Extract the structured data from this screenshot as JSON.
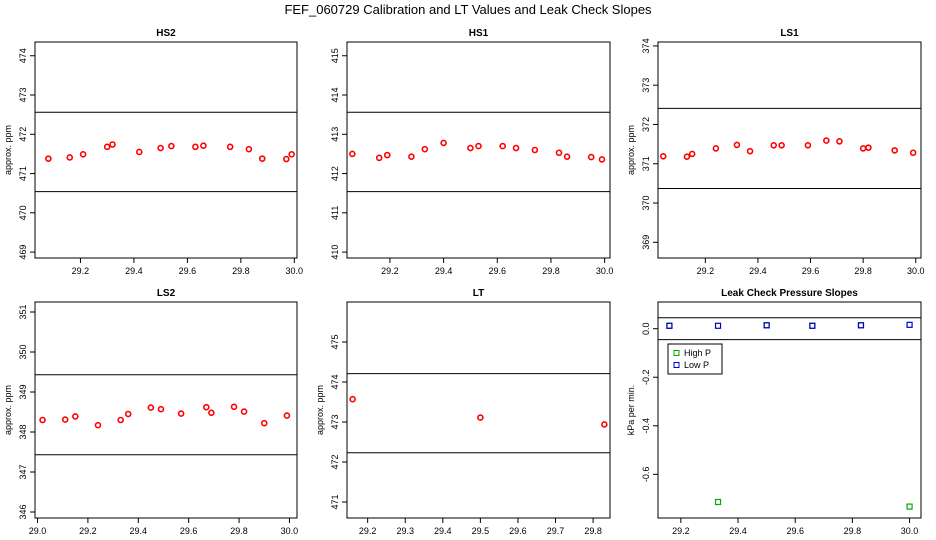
{
  "title": "FEF_060729  Calibration and LT Values and Leak Check Slopes",
  "colors": {
    "point": "#ff0000",
    "high_p": "#00aa00",
    "low_p": "#0000cc",
    "axis": "#000000"
  },
  "chart_data": [
    {
      "type": "scatter",
      "title": "HS2",
      "ylabel": "approx. ppm",
      "xlim": [
        29.03,
        30.01
      ],
      "ylim": [
        468.85,
        474.35
      ],
      "xticks": [
        29.2,
        29.4,
        29.6,
        29.8,
        30.0
      ],
      "xtick_labels": [
        "29.2",
        "29.4",
        "29.6",
        "29.8",
        "30.0"
      ],
      "yticks": [
        469,
        470,
        471,
        472,
        473,
        474
      ],
      "ytick_labels": [
        "469",
        "470",
        "471",
        "472",
        "473",
        "474"
      ],
      "hlines": [
        470.54,
        472.56
      ],
      "series": [
        {
          "marker": "circle",
          "color": "#ff0000",
          "x": [
            29.08,
            29.16,
            29.21,
            29.3,
            29.32,
            29.42,
            29.5,
            29.54,
            29.63,
            29.66,
            29.76,
            29.83,
            29.88,
            29.97,
            29.99
          ],
          "y": [
            471.38,
            471.41,
            471.49,
            471.68,
            471.74,
            471.55,
            471.65,
            471.7,
            471.68,
            471.71,
            471.68,
            471.62,
            471.38,
            471.37,
            471.49
          ]
        }
      ]
    },
    {
      "type": "scatter",
      "title": "HS1",
      "ylabel": "",
      "xlim": [
        29.04,
        30.02
      ],
      "ylim": [
        409.85,
        415.35
      ],
      "xticks": [
        29.2,
        29.4,
        29.6,
        29.8,
        30.0
      ],
      "xtick_labels": [
        "29.2",
        "29.4",
        "29.6",
        "29.8",
        "30.0"
      ],
      "yticks": [
        410,
        411,
        412,
        413,
        414,
        415
      ],
      "ytick_labels": [
        "410",
        "411",
        "412",
        "413",
        "414",
        "415"
      ],
      "hlines": [
        411.54,
        413.56
      ],
      "series": [
        {
          "marker": "circle",
          "color": "#ff0000",
          "x": [
            29.06,
            29.16,
            29.19,
            29.28,
            29.33,
            29.4,
            29.5,
            29.53,
            29.62,
            29.67,
            29.74,
            29.83,
            29.86,
            29.95,
            29.99
          ],
          "y": [
            412.5,
            412.4,
            412.47,
            412.43,
            412.62,
            412.78,
            412.65,
            412.7,
            412.7,
            412.65,
            412.6,
            412.53,
            412.43,
            412.42,
            412.36
          ]
        }
      ]
    },
    {
      "type": "scatter",
      "title": "LS1",
      "ylabel": "approx. ppm",
      "xlim": [
        29.02,
        30.02
      ],
      "ylim": [
        368.6,
        374.1
      ],
      "xticks": [
        29.2,
        29.4,
        29.6,
        29.8,
        30.0
      ],
      "xtick_labels": [
        "29.2",
        "29.4",
        "29.6",
        "29.8",
        "30.0"
      ],
      "yticks": [
        369,
        370,
        371,
        372,
        373,
        374
      ],
      "ytick_labels": [
        "369",
        "370",
        "371",
        "372",
        "373",
        "374"
      ],
      "hlines": [
        370.37,
        372.41
      ],
      "series": [
        {
          "marker": "circle",
          "color": "#ff0000",
          "x": [
            29.04,
            29.13,
            29.15,
            29.24,
            29.32,
            29.37,
            29.46,
            29.49,
            29.59,
            29.66,
            29.71,
            29.8,
            29.82,
            29.92,
            29.99
          ],
          "y": [
            371.19,
            371.18,
            371.25,
            371.39,
            371.48,
            371.32,
            371.47,
            371.47,
            371.47,
            371.59,
            371.57,
            371.39,
            371.41,
            371.34,
            371.28
          ]
        }
      ]
    },
    {
      "type": "scatter",
      "title": "LS2",
      "ylabel": "approx. ppm",
      "xlim": [
        28.99,
        30.03
      ],
      "ylim": [
        345.85,
        351.25
      ],
      "xticks": [
        29.0,
        29.2,
        29.4,
        29.6,
        29.8,
        30.0
      ],
      "xtick_labels": [
        "29.0",
        "29.2",
        "29.4",
        "29.6",
        "29.8",
        "30.0"
      ],
      "yticks": [
        346,
        347,
        348,
        349,
        350,
        351
      ],
      "ytick_labels": [
        "346",
        "347",
        "348",
        "349",
        "350",
        "351"
      ],
      "hlines": [
        347.43,
        349.43
      ],
      "series": [
        {
          "marker": "circle",
          "color": "#ff0000",
          "x": [
            29.02,
            29.11,
            29.15,
            29.24,
            29.33,
            29.36,
            29.45,
            29.49,
            29.57,
            29.67,
            29.69,
            29.78,
            29.82,
            29.9,
            29.99
          ],
          "y": [
            348.3,
            348.31,
            348.39,
            348.17,
            348.3,
            348.45,
            348.61,
            348.57,
            348.46,
            348.62,
            348.48,
            348.63,
            348.51,
            348.22,
            348.41
          ]
        }
      ]
    },
    {
      "type": "scatter",
      "title": "LT",
      "ylabel": "approx. ppm",
      "xlim": [
        29.145,
        29.845
      ],
      "ylim": [
        470.6,
        476.0
      ],
      "xticks": [
        29.2,
        29.3,
        29.4,
        29.5,
        29.6,
        29.7,
        29.8
      ],
      "xtick_labels": [
        "29.2",
        "29.3",
        "29.4",
        "29.5",
        "29.6",
        "29.7",
        "29.8"
      ],
      "yticks": [
        471,
        472,
        473,
        474,
        475
      ],
      "ytick_labels": [
        "471",
        "472",
        "473",
        "474",
        "475"
      ],
      "hlines": [
        472.23,
        474.21
      ],
      "series": [
        {
          "marker": "circle",
          "color": "#ff0000",
          "x": [
            29.16,
            29.5,
            29.83
          ],
          "y": [
            473.57,
            473.11,
            472.94
          ]
        }
      ]
    },
    {
      "type": "scatter",
      "title": "Leak Check Pressure Slopes",
      "ylabel": "kPa per min.",
      "xlim": [
        29.12,
        30.04
      ],
      "ylim": [
        -0.78,
        0.11
      ],
      "xticks": [
        29.2,
        29.4,
        29.6,
        29.8,
        30.0
      ],
      "xtick_labels": [
        "29.2",
        "29.4",
        "29.6",
        "29.8",
        "30.0"
      ],
      "yticks": [
        0.0,
        -0.2,
        -0.4,
        -0.6
      ],
      "ytick_labels": [
        "0.0",
        "-0.2",
        "-0.4",
        "-0.6"
      ],
      "hlines": [
        0.045,
        -0.045
      ],
      "legend": {
        "placement": "top-left",
        "entries": [
          "High P",
          "Low P"
        ]
      },
      "series": [
        {
          "name": "High P",
          "marker": "square",
          "color": "#00aa00",
          "x": [
            29.16,
            29.33,
            29.5,
            29.66,
            29.83,
            30.0
          ],
          "y": [
            0.012,
            -0.714,
            0.014,
            0.012,
            0.014,
            -0.733
          ]
        },
        {
          "name": "Low P",
          "marker": "square",
          "color": "#0000cc",
          "x": [
            29.16,
            29.33,
            29.5,
            29.66,
            29.83,
            30.0
          ],
          "y": [
            0.012,
            0.012,
            0.014,
            0.012,
            0.014,
            0.016
          ]
        }
      ]
    }
  ]
}
